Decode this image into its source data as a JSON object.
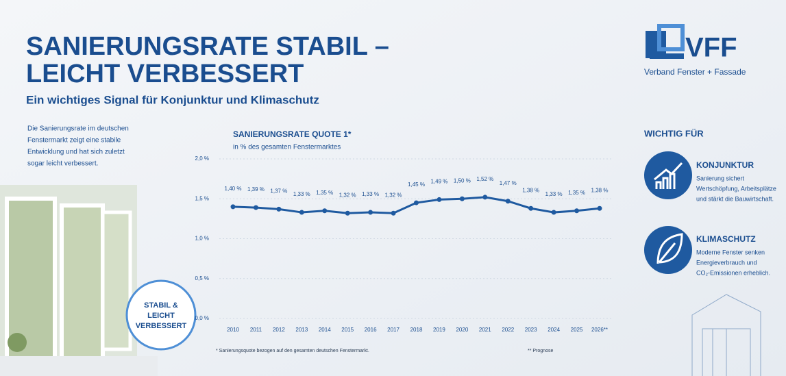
{
  "header": {
    "title_lines": [
      "SANIERUNGSRATE STABIL –",
      "LEICHT VERBESSERT"
    ],
    "subtitle": "Ein wichtiges Signal für Konjunktur und Klimaschutz"
  },
  "intro_lines": [
    "Die Sanierungsrate im deutschen",
    "Fenstermarkt zeigt eine stabile",
    "Entwicklung und hat sich zuletzt",
    "sogar leicht verbessert."
  ],
  "badge_lines": [
    "STABIL &",
    "LEICHT",
    "VERBESSERT"
  ],
  "logo": {
    "name": "VFF",
    "tagline": "Verband Fenster + Fassade"
  },
  "side": {
    "heading": "WICHTIG FÜR",
    "items": [
      {
        "title": "KONJUNKTUR",
        "lines": [
          "Sanierung sichert",
          "Wertschöpfung, Arbeitsplätze",
          "und stärkt die Bauwirtschaft."
        ]
      },
      {
        "title": "KLIMASCHUTZ",
        "lines": [
          "Moderne Fenster senken",
          "Energieverbrauch und",
          "CO₂-Emissionen erheblich."
        ]
      }
    ]
  },
  "footnotes": [
    "* Sanierungsquote bezogen auf den gesamten deutschen Fenstermarkt.",
    "** Prognose"
  ],
  "chart_data": {
    "type": "line",
    "title": "SANIERUNGSRATE QUOTE 1*",
    "subtitle": "in % des gesamten Fenstermarktes",
    "categories": [
      "2010",
      "2011",
      "2012",
      "2013",
      "2014",
      "2015",
      "2016",
      "2017",
      "2018",
      "2019",
      "2020",
      "2021",
      "2022",
      "2023",
      "2024",
      "2025",
      "2026**"
    ],
    "values": [
      1.4,
      1.39,
      1.37,
      1.33,
      1.35,
      1.32,
      1.33,
      1.32,
      1.45,
      1.49,
      1.5,
      1.52,
      1.47,
      1.38,
      1.33,
      1.35,
      1.38
    ],
    "value_labels": [
      "1,40 %",
      "1,39 %",
      "1,37 %",
      "1,33 %",
      "1,35 %",
      "1,32 %",
      "1,33 %",
      "1,32 %",
      "1,45 %",
      "1,49 %",
      "1,50 %",
      "1,52 %",
      "1,47 %",
      "1,38 %",
      "1,33 %",
      "1,35 %",
      "1,38 %"
    ],
    "color": "#1f5aa0",
    "ylim": [
      0,
      2
    ],
    "yticks": [
      {
        "value": 0,
        "label": "0,0 %"
      },
      {
        "value": 0.5,
        "label": "0,5 %"
      },
      {
        "value": 1,
        "label": "1,0 %"
      },
      {
        "value": 1.5,
        "label": "1,5 %"
      },
      {
        "value": 2,
        "label": "2,0 %"
      }
    ],
    "grid": true
  }
}
